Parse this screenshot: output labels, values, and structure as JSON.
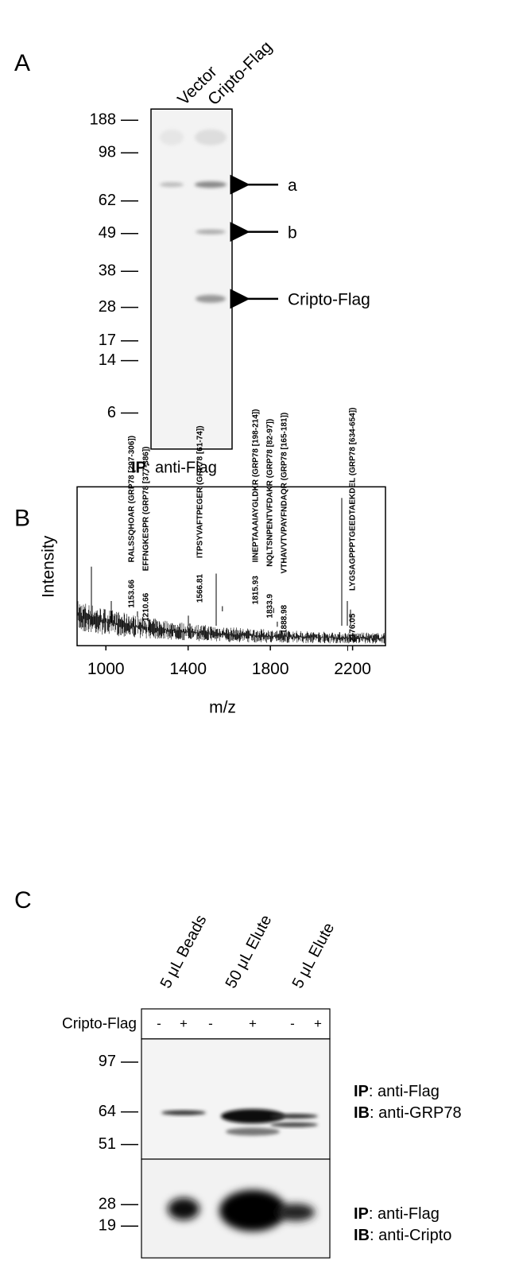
{
  "panel_a": {
    "label": "A",
    "lanes": [
      "Vector",
      "Cripto-Flag"
    ],
    "markers": [
      188,
      98,
      62,
      49,
      38,
      28,
      17,
      14,
      6
    ],
    "bands": [
      "a",
      "b",
      "Cripto-Flag"
    ],
    "caption": {
      "bold": "IP",
      "text": ": anti-Flag"
    }
  },
  "chart_data": {
    "type": "spectrum",
    "panel_label": "B",
    "xlabel": "m/z",
    "ylabel": "Intensity",
    "xlim": [
      860,
      2360
    ],
    "xticks": [
      1000,
      1400,
      1800,
      2200
    ],
    "peaks": [
      {
        "mz": 1153.66,
        "annotation": "RALSSQHOAR (GRP78 [297-306])"
      },
      {
        "mz": 1210.66,
        "annotation": "EFFNGKESPR (GRP78 [377-386])"
      },
      {
        "mz": 1566.81,
        "annotation": "ITPSYVAFTPEGER (GRP78 [61-74])"
      },
      {
        "mz": 1815.93,
        "annotation": "IINEPTAAAIAYGLDKR (GRP78 [198-214])"
      },
      {
        "mz": 1833.9,
        "annotation": "NQLTSNPENTVFDAKR (GRP78 [82-97])"
      },
      {
        "mz": 1888.98,
        "annotation": "VTHAVVTVPAYFNDAQR (GRP78 [165-181])"
      },
      {
        "mz": 2176.05,
        "annotation": "LYGSAGPPPTGEEDTAEKDEL (GRP78 [634-654])"
      }
    ]
  },
  "panel_c": {
    "label": "C",
    "lanes": [
      "5 μL Beads",
      "50 μL Elute",
      "5 μL Elute"
    ],
    "row_label": "Cripto-Flag",
    "signs": [
      "-",
      "+",
      "-",
      "+",
      "-",
      "+"
    ],
    "markers": [
      97,
      64,
      51,
      28,
      19
    ],
    "blots": [
      {
        "ip_bold": "IP",
        "ip": ": anti-Flag",
        "ib_bold": "IB",
        "ib": ": anti-GRP78"
      },
      {
        "ip_bold": "IP",
        "ip": ": anti-Flag",
        "ib_bold": "IB",
        "ib": ": anti-Cripto"
      }
    ]
  }
}
